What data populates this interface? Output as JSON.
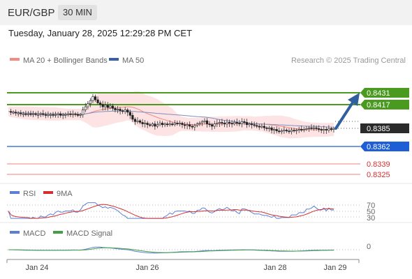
{
  "header": {
    "symbol": "EUR/GBP",
    "timeframe": "30 MIN",
    "datetime": "Tuesday, January 28, 2025 12:29:28 PM CET"
  },
  "chart_data": [
    {
      "type": "candlestick",
      "title": "",
      "legend": [
        {
          "name": "MA 20 + Bollinger Bands",
          "color": "#f28b82"
        },
        {
          "name": "MA 50",
          "color": "#3b5ea8"
        }
      ],
      "credit": "Research © 2025 Trading Central",
      "x_ticks": [
        "Jan 24",
        "Jan 26",
        "Jan 28",
        "Jan 29"
      ],
      "current_price": "0.8385",
      "resistance_levels": [
        "0.8431",
        "0.8417"
      ],
      "support_levels": [
        "0.8362",
        "0.8339",
        "0.8325"
      ],
      "close_series": [
        0.8407,
        0.8406,
        0.8406,
        0.8405,
        0.8405,
        0.8404,
        0.8404,
        0.8403,
        0.8404,
        0.8403,
        0.8404,
        0.8403,
        0.8403,
        0.8404,
        0.8403,
        0.8402,
        0.8403,
        0.8403,
        0.8402,
        0.8403,
        0.8404,
        0.8402,
        0.8403,
        0.8403,
        0.8404,
        0.8403,
        0.8404,
        0.8403,
        0.8402,
        0.8403,
        0.8409,
        0.8413,
        0.8417,
        0.8421,
        0.8426,
        0.8422,
        0.8418,
        0.8416,
        0.8413,
        0.8415,
        0.8412,
        0.8414,
        0.8411,
        0.8409,
        0.841,
        0.8408,
        0.8407,
        0.8409,
        0.8406,
        0.8402,
        0.8397,
        0.8394,
        0.8395,
        0.8393,
        0.8391,
        0.8392,
        0.839,
        0.8389,
        0.8391,
        0.8388,
        0.839,
        0.8392,
        0.839,
        0.8391,
        0.839,
        0.8391,
        0.839,
        0.8392,
        0.8391,
        0.8392,
        0.839,
        0.8389,
        0.839,
        0.8388,
        0.8387,
        0.8389,
        0.8391,
        0.8392,
        0.8394,
        0.8395,
        0.8391,
        0.839,
        0.8388,
        0.8391,
        0.8392,
        0.8393,
        0.8392,
        0.8391,
        0.8393,
        0.8392,
        0.8391,
        0.8393,
        0.8392,
        0.8391,
        0.8394,
        0.8393,
        0.839,
        0.8391,
        0.839,
        0.8389,
        0.8388,
        0.8387,
        0.8388,
        0.8386,
        0.8385,
        0.8386,
        0.8383,
        0.8384,
        0.8382,
        0.8381,
        0.8382,
        0.8383,
        0.8382,
        0.8381,
        0.8383,
        0.8382,
        0.8383,
        0.8384,
        0.8383,
        0.8384,
        0.8385,
        0.8386,
        0.8385,
        0.8386,
        0.8385,
        0.8384,
        0.8383,
        0.8384,
        0.8383,
        0.8385,
        0.8384,
        0.8385
      ],
      "projection": "arrow up toward 0.8431"
    },
    {
      "type": "line",
      "title": "",
      "legend": [
        {
          "name": "RSI",
          "color": "#5b7fd6"
        },
        {
          "name": "9MA",
          "color": "#d32f2f"
        }
      ],
      "y_ticks": [
        "70",
        "50",
        "30"
      ],
      "ylim": [
        20,
        80
      ]
    },
    {
      "type": "line",
      "title": "",
      "legend": [
        {
          "name": "MACD",
          "color": "#5b7fd6"
        },
        {
          "name": "MACD Signal",
          "color": "#43a047"
        }
      ],
      "y_ticks": [
        "0"
      ]
    }
  ]
}
